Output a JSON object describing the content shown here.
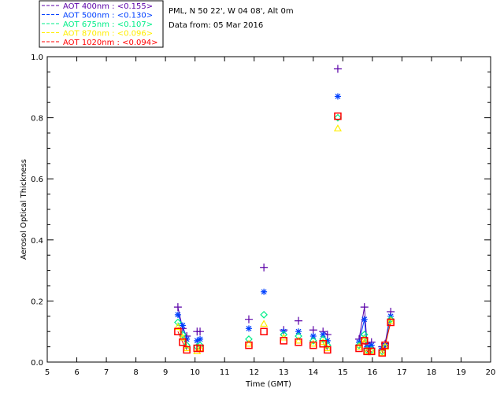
{
  "header": {
    "site": "PML, N 50 22', W 04 08', Alt 0m",
    "date": "Data from: 05 Mar 2016"
  },
  "chart_data": {
    "type": "scatter",
    "xlabel": "Time (GMT)",
    "ylabel": "Aerosol Optical Thickness",
    "xlim": [
      5,
      20
    ],
    "ylim": [
      0,
      1.0
    ],
    "xticks": [
      5,
      6,
      7,
      8,
      9,
      10,
      11,
      12,
      13,
      14,
      15,
      16,
      17,
      18,
      19,
      20
    ],
    "yticks": [
      "0.0",
      "0.2",
      "0.4",
      "0.6",
      "0.8",
      "1.0"
    ],
    "legend_position": "top-left, outside plot",
    "x": [
      9.42,
      9.58,
      9.72,
      10.07,
      10.17,
      11.82,
      12.33,
      13.0,
      13.5,
      14.0,
      14.33,
      14.48,
      14.83,
      15.55,
      15.73,
      15.82,
      15.97,
      16.33,
      16.43,
      16.62
    ],
    "series": [
      {
        "name": "AOT  400nm : <0.155>",
        "color": "#5a00a8",
        "marker": "plus",
        "values": [
          0.18,
          0.11,
          0.085,
          0.1,
          0.1,
          0.14,
          0.31,
          0.105,
          0.135,
          0.105,
          0.1,
          0.09,
          0.96,
          0.075,
          0.18,
          0.06,
          0.065,
          0.05,
          0.06,
          0.165
        ]
      },
      {
        "name": "AOT  500nm : <0.130>",
        "color": "#0040ff",
        "marker": "asterisk",
        "values": [
          0.155,
          0.12,
          0.075,
          0.07,
          0.075,
          0.11,
          0.23,
          0.1,
          0.1,
          0.085,
          0.09,
          0.07,
          0.87,
          0.065,
          0.14,
          0.05,
          0.055,
          0.045,
          0.055,
          0.15
        ]
      },
      {
        "name": "AOT  675nm : <0.107>",
        "color": "#00ee88",
        "marker": "diamond",
        "values": [
          0.13,
          0.09,
          0.055,
          0.05,
          0.055,
          0.075,
          0.155,
          0.09,
          0.085,
          0.07,
          0.075,
          0.055,
          0.8,
          0.055,
          0.09,
          0.04,
          0.04,
          0.035,
          0.05,
          0.14
        ]
      },
      {
        "name": "AOT  870nm : <0.096>",
        "color": "#ffee00",
        "marker": "triangle",
        "values": [
          0.115,
          0.08,
          0.045,
          0.035,
          0.045,
          0.06,
          0.125,
          0.08,
          0.07,
          0.06,
          0.065,
          0.045,
          0.765,
          0.05,
          0.075,
          0.035,
          0.035,
          0.03,
          0.05,
          0.135
        ]
      },
      {
        "name": "AOT 1020nm : <0.094>",
        "color": "#ff0000",
        "marker": "square",
        "values": [
          0.1,
          0.065,
          0.04,
          0.045,
          0.045,
          0.055,
          0.1,
          0.07,
          0.065,
          0.055,
          0.06,
          0.04,
          0.805,
          0.045,
          0.07,
          0.035,
          0.035,
          0.03,
          0.055,
          0.13
        ]
      }
    ]
  }
}
